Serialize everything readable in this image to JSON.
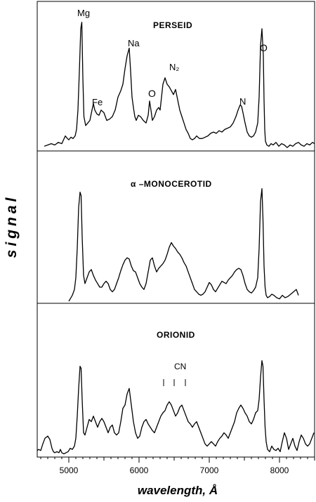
{
  "chart_data": {
    "type": "line",
    "xlabel": "wavelength, Å",
    "ylabel": "signal",
    "xlim": [
      4550,
      8500
    ],
    "xticks": [
      5000,
      6000,
      7000,
      8000
    ],
    "xtick_labels": [
      "5000",
      "6000",
      "7000",
      "8000"
    ],
    "ylim": [
      0,
      1
    ],
    "panels": [
      {
        "title": "PERSEID",
        "series": [
          {
            "x": [
              4650,
              4700,
              4750,
              4800,
              4850,
              4900,
              4950,
              4980,
              5000,
              5030,
              5060,
              5090,
              5110,
              5130,
              5150,
              5170,
              5185,
              5200,
              5215,
              5240,
              5270,
              5300,
              5330,
              5350,
              5370,
              5400,
              5430,
              5460,
              5500,
              5540,
              5580,
              5620,
              5660,
              5700,
              5740,
              5770,
              5800,
              5830,
              5860,
              5880,
              5900,
              5920,
              5940,
              5960,
              5990,
              6020,
              6060,
              6100,
              6130,
              6150,
              6170,
              6190,
              6220,
              6250,
              6280,
              6300,
              6320,
              6340,
              6370,
              6400,
              6430,
              6460,
              6490,
              6520,
              6550,
              6580,
              6610,
              6640,
              6670,
              6700,
              6730,
              6760,
              6790,
              6820,
              6860,
              6900,
              6940,
              6980,
              7020,
              7060,
              7100,
              7140,
              7180,
              7220,
              7260,
              7300,
              7340,
              7380,
              7410,
              7440,
              7460,
              7480,
              7510,
              7540,
              7570,
              7600,
              7630,
              7660,
              7690,
              7710,
              7730,
              7750,
              7770,
              7780,
              7790,
              7800,
              7820,
              7850,
              7880,
              7910,
              7950,
              7990,
              8030,
              8070,
              8110,
              8150,
              8190,
              8230,
              8270,
              8310,
              8350,
              8390,
              8430,
              8470,
              8500
            ],
            "y": [
              0.02,
              0.03,
              0.04,
              0.03,
              0.05,
              0.04,
              0.1,
              0.08,
              0.07,
              0.09,
              0.08,
              0.1,
              0.15,
              0.3,
              0.6,
              0.93,
              0.98,
              0.55,
              0.25,
              0.18,
              0.2,
              0.22,
              0.3,
              0.35,
              0.3,
              0.27,
              0.26,
              0.3,
              0.28,
              0.22,
              0.23,
              0.25,
              0.3,
              0.4,
              0.45,
              0.5,
              0.62,
              0.72,
              0.78,
              0.6,
              0.4,
              0.32,
              0.25,
              0.22,
              0.26,
              0.25,
              0.22,
              0.2,
              0.26,
              0.37,
              0.3,
              0.22,
              0.25,
              0.3,
              0.32,
              0.3,
              0.4,
              0.5,
              0.55,
              0.5,
              0.48,
              0.45,
              0.42,
              0.46,
              0.38,
              0.3,
              0.25,
              0.2,
              0.15,
              0.12,
              0.08,
              0.07,
              0.08,
              0.1,
              0.08,
              0.08,
              0.09,
              0.1,
              0.12,
              0.13,
              0.12,
              0.14,
              0.13,
              0.15,
              0.16,
              0.17,
              0.2,
              0.25,
              0.3,
              0.34,
              0.33,
              0.28,
              0.2,
              0.13,
              0.1,
              0.09,
              0.1,
              0.13,
              0.2,
              0.4,
              0.8,
              0.93,
              0.72,
              0.38,
              0.15,
              0.06,
              0.03,
              0.02,
              0.04,
              0.03,
              0.05,
              0.02,
              0.04,
              0.03,
              0.01,
              0.03,
              0.02,
              0.04,
              0.05,
              0.03,
              0.02,
              0.04,
              0.03,
              0.05,
              0.04
            ]
          }
        ],
        "annotations": [
          "Mg",
          "Fe",
          "Na",
          "O",
          "N₂",
          "N",
          "O"
        ]
      },
      {
        "title": "α –MONOCEROTID",
        "series": [
          {
            "x": [
              5000,
              5020,
              5050,
              5080,
              5100,
              5120,
              5140,
              5160,
              5175,
              5190,
              5210,
              5230,
              5260,
              5290,
              5320,
              5350,
              5380,
              5410,
              5440,
              5470,
              5500,
              5530,
              5560,
              5590,
              5620,
              5650,
              5680,
              5710,
              5740,
              5770,
              5800,
              5830,
              5860,
              5890,
              5920,
              5950,
              5980,
              6010,
              6040,
              6070,
              6100,
              6130,
              6160,
              6190,
              6220,
              6250,
              6280,
              6310,
              6340,
              6370,
              6400,
              6430,
              6460,
              6490,
              6520,
              6550,
              6580,
              6610,
              6640,
              6670,
              6700,
              6730,
              6760,
              6790,
              6820,
              6850,
              6880,
              6910,
              6940,
              6970,
              7000,
              7030,
              7060,
              7090,
              7120,
              7150,
              7180,
              7210,
              7240,
              7270,
              7300,
              7330,
              7360,
              7390,
              7420,
              7450,
              7480,
              7510,
              7540,
              7570,
              7600,
              7630,
              7660,
              7690,
              7710,
              7730,
              7750,
              7765,
              7780,
              7795,
              7810,
              7830,
              7860,
              7890,
              7920,
              7960,
              8000,
              8040,
              8080,
              8120,
              8160,
              8200,
              8240,
              8270
            ],
            "y": [
              0.0,
              0.02,
              0.05,
              0.1,
              0.2,
              0.45,
              0.8,
              0.93,
              0.9,
              0.55,
              0.22,
              0.15,
              0.2,
              0.25,
              0.27,
              0.22,
              0.18,
              0.15,
              0.12,
              0.12,
              0.15,
              0.17,
              0.15,
              0.1,
              0.08,
              0.1,
              0.15,
              0.2,
              0.26,
              0.31,
              0.35,
              0.37,
              0.36,
              0.3,
              0.26,
              0.25,
              0.2,
              0.15,
              0.12,
              0.1,
              0.15,
              0.25,
              0.35,
              0.37,
              0.3,
              0.25,
              0.28,
              0.3,
              0.32,
              0.35,
              0.4,
              0.46,
              0.5,
              0.47,
              0.45,
              0.42,
              0.4,
              0.37,
              0.33,
              0.3,
              0.25,
              0.2,
              0.15,
              0.1,
              0.08,
              0.06,
              0.05,
              0.06,
              0.08,
              0.12,
              0.16,
              0.14,
              0.1,
              0.08,
              0.11,
              0.14,
              0.17,
              0.16,
              0.15,
              0.18,
              0.2,
              0.22,
              0.25,
              0.27,
              0.28,
              0.27,
              0.22,
              0.15,
              0.1,
              0.08,
              0.07,
              0.09,
              0.12,
              0.2,
              0.45,
              0.85,
              0.96,
              0.7,
              0.3,
              0.12,
              0.05,
              0.03,
              0.04,
              0.06,
              0.05,
              0.03,
              0.02,
              0.05,
              0.03,
              0.04,
              0.06,
              0.08,
              0.1,
              0.05
            ]
          }
        ]
      },
      {
        "title": "ORIONID",
        "series": [
          {
            "x": [
              4550,
              4570,
              4600,
              4630,
              4660,
              4700,
              4730,
              4760,
              4780,
              4800,
              4830,
              4860,
              4880,
              4900,
              4930,
              4960,
              4990,
              5020,
              5050,
              5080,
              5100,
              5120,
              5140,
              5160,
              5175,
              5190,
              5210,
              5230,
              5260,
              5290,
              5320,
              5350,
              5380,
              5410,
              5440,
              5470,
              5500,
              5530,
              5560,
              5590,
              5620,
              5650,
              5680,
              5710,
              5740,
              5770,
              5800,
              5830,
              5860,
              5890,
              5920,
              5950,
              5980,
              6010,
              6040,
              6070,
              6100,
              6130,
              6160,
              6190,
              6220,
              6250,
              6280,
              6310,
              6340,
              6370,
              6400,
              6430,
              6460,
              6490,
              6520,
              6550,
              6580,
              6610,
              6640,
              6670,
              6700,
              6730,
              6760,
              6790,
              6820,
              6850,
              6880,
              6910,
              6940,
              6970,
              7000,
              7030,
              7060,
              7090,
              7120,
              7150,
              7180,
              7210,
              7240,
              7270,
              7300,
              7330,
              7360,
              7390,
              7420,
              7450,
              7480,
              7510,
              7540,
              7570,
              7600,
              7630,
              7660,
              7690,
              7710,
              7730,
              7750,
              7765,
              7780,
              7795,
              7810,
              7830,
              7860,
              7890,
              7920,
              7950,
              7980,
              8010,
              8040,
              8070,
              8100,
              8130,
              8160,
              8190,
              8220,
              8250,
              8280,
              8310,
              8340,
              8370,
              8400,
              8430,
              8460,
              8490
            ],
            "y": [
              0.04,
              0.05,
              0.04,
              0.1,
              0.15,
              0.17,
              0.14,
              0.06,
              0.03,
              0.02,
              0.03,
              0.02,
              0.05,
              0.02,
              0.01,
              0.02,
              0.03,
              0.06,
              0.05,
              0.08,
              0.15,
              0.35,
              0.6,
              0.8,
              0.78,
              0.5,
              0.2,
              0.18,
              0.25,
              0.32,
              0.3,
              0.35,
              0.3,
              0.25,
              0.3,
              0.33,
              0.3,
              0.25,
              0.2,
              0.25,
              0.27,
              0.2,
              0.18,
              0.2,
              0.3,
              0.42,
              0.45,
              0.55,
              0.6,
              0.45,
              0.3,
              0.2,
              0.15,
              0.17,
              0.25,
              0.3,
              0.32,
              0.28,
              0.25,
              0.22,
              0.2,
              0.25,
              0.3,
              0.35,
              0.38,
              0.4,
              0.45,
              0.48,
              0.45,
              0.4,
              0.35,
              0.38,
              0.43,
              0.45,
              0.4,
              0.35,
              0.3,
              0.28,
              0.25,
              0.28,
              0.3,
              0.25,
              0.2,
              0.15,
              0.1,
              0.08,
              0.1,
              0.12,
              0.1,
              0.08,
              0.12,
              0.15,
              0.17,
              0.2,
              0.18,
              0.15,
              0.2,
              0.25,
              0.3,
              0.38,
              0.42,
              0.45,
              0.42,
              0.38,
              0.35,
              0.3,
              0.28,
              0.32,
              0.38,
              0.4,
              0.5,
              0.7,
              0.85,
              0.8,
              0.5,
              0.25,
              0.12,
              0.05,
              0.03,
              0.08,
              0.05,
              0.04,
              0.06,
              0.03,
              0.12,
              0.2,
              0.15,
              0.05,
              0.1,
              0.15,
              0.08,
              0.04,
              0.12,
              0.18,
              0.15,
              0.1,
              0.08,
              0.1,
              0.15,
              0.2
            ]
          }
        ],
        "annotations": [
          "CN"
        ]
      }
    ]
  }
}
